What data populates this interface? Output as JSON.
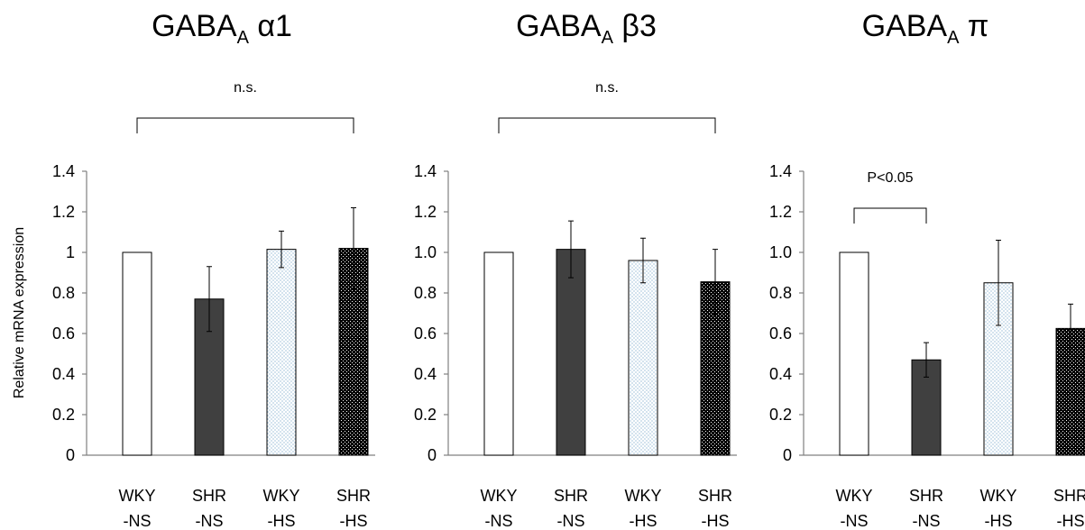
{
  "figure": {
    "ylabel": "Relative  mRNA expression"
  },
  "chart_data": [
    {
      "type": "bar",
      "title": {
        "main": "GABA",
        "sub": "A",
        "suffix": " α1"
      },
      "ylim": [
        0,
        1.4
      ],
      "y_ticks": [
        "0",
        "0.2",
        "0.4",
        "0.6",
        "0.8",
        "1",
        "1.2",
        "1.4"
      ],
      "categories": [
        [
          "WKY",
          "-NS"
        ],
        [
          "SHR",
          "-NS"
        ],
        [
          "WKY",
          "-HS"
        ],
        [
          "SHR",
          "-HS"
        ]
      ],
      "values": [
        1.0,
        0.77,
        1.015,
        1.02
      ],
      "errors": [
        0,
        0.16,
        0.09,
        0.2
      ],
      "fills": [
        "white",
        "dark",
        "dots",
        "checker"
      ],
      "annotation": {
        "text": "n.s.",
        "from": 0,
        "to": 3
      }
    },
    {
      "type": "bar",
      "title": {
        "main": "GABA",
        "sub": "A",
        "suffix": " β3"
      },
      "ylim": [
        0,
        1.4
      ],
      "y_ticks": [
        "0",
        "0.2",
        "0.4",
        "0.6",
        "0.8",
        "1.0",
        "1.2",
        "1.4"
      ],
      "categories": [
        [
          "WKY",
          "-NS"
        ],
        [
          "SHR",
          "-NS"
        ],
        [
          "WKY",
          "-HS"
        ],
        [
          "SHR",
          "-HS"
        ]
      ],
      "values": [
        1.0,
        1.015,
        0.96,
        0.855
      ],
      "errors": [
        0,
        0.14,
        0.11,
        0.16
      ],
      "fills": [
        "white",
        "dark",
        "dots",
        "checker"
      ],
      "annotation": {
        "text": "n.s.",
        "from": 0,
        "to": 3
      }
    },
    {
      "type": "bar",
      "title": {
        "main": "GABA",
        "sub": "A",
        "suffix": " π"
      },
      "ylim": [
        0,
        1.4
      ],
      "y_ticks": [
        "0",
        "0.2",
        "0.4",
        "0.6",
        "0.8",
        "1.0",
        "1.2",
        "1.4"
      ],
      "categories": [
        [
          "WKY",
          "-NS"
        ],
        [
          "SHR",
          "-NS"
        ],
        [
          "WKY",
          "-HS"
        ],
        [
          "SHR",
          "-HS"
        ]
      ],
      "values": [
        1.0,
        0.47,
        0.85,
        0.625
      ],
      "errors": [
        0,
        0.085,
        0.21,
        0.12
      ],
      "fills": [
        "white",
        "dark",
        "dots",
        "checker"
      ],
      "annotation": {
        "text": "P<0.05",
        "from": 0,
        "to": 1
      }
    }
  ],
  "colors": {
    "dark": "#404040",
    "dots": "#6a9fc7",
    "axis": "#808080",
    "checker": "#000000"
  }
}
